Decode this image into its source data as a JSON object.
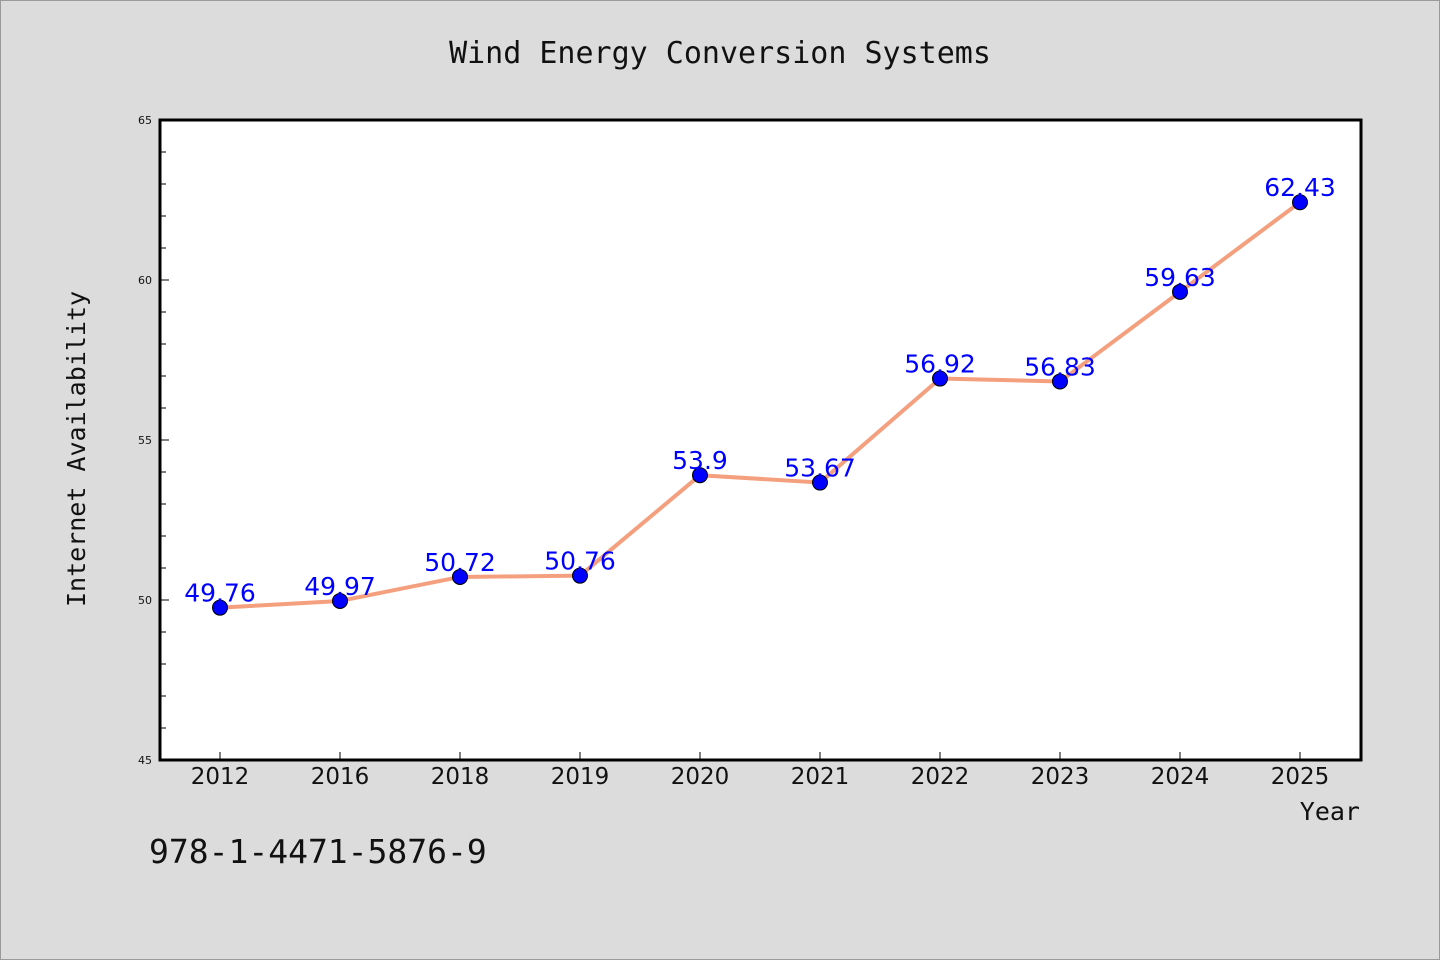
{
  "chart_data": {
    "type": "line",
    "title": "Wind Energy Conversion Systems",
    "xlabel": "Year",
    "ylabel": "Internet Availability",
    "categories": [
      "2012",
      "2016",
      "2018",
      "2019",
      "2020",
      "2021",
      "2022",
      "2023",
      "2024",
      "2025"
    ],
    "values": [
      49.76,
      49.97,
      50.72,
      50.76,
      53.9,
      53.67,
      56.92,
      56.83,
      59.63,
      62.43
    ],
    "value_labels": [
      "49.76",
      "49.97",
      "50.72",
      "50.76",
      "53.9",
      "53.67",
      "56.92",
      "56.83",
      "59.63",
      "62.43"
    ],
    "ylim": [
      45,
      65
    ],
    "yticks": [
      45,
      50,
      55,
      60,
      65
    ],
    "ytick_labels": [
      "45",
      "50",
      "55",
      "60",
      "65"
    ],
    "y_minor_step": 1,
    "grid": false,
    "legend": "none",
    "colors": {
      "line": "#f4a07f",
      "marker": "#0000ff",
      "data_label": "#0000ff",
      "plot_background": "#ffffff",
      "page_background": "#dcdcdc"
    }
  },
  "footer": {
    "code": "978-1-4471-5876-9"
  }
}
